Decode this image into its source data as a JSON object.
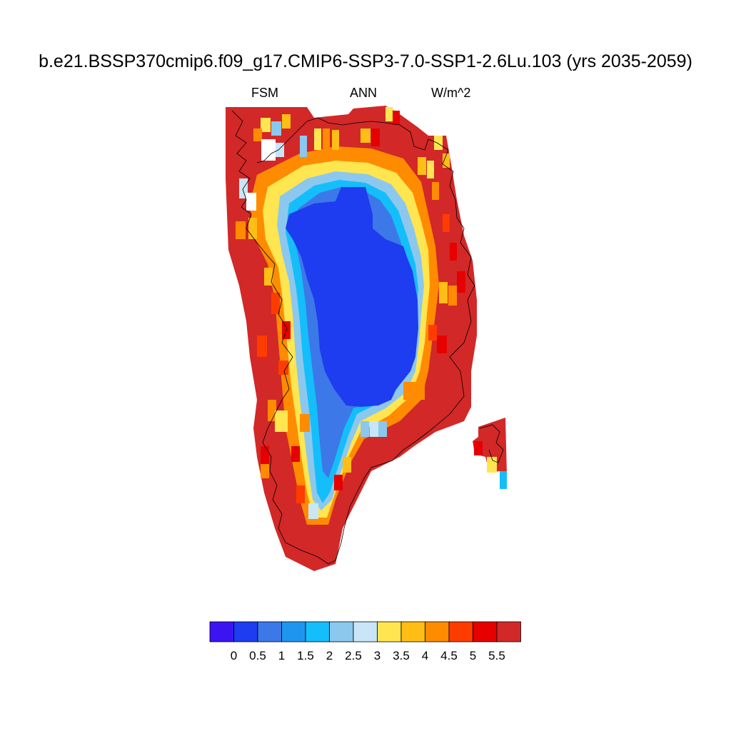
{
  "title": "b.e21.BSSP370cmip6.f09_g17.CMIP6-SSP3-7.0-SSP1-2.6Lu.103 (yrs 2035-2059)",
  "subtitle_left": "FSM",
  "subtitle_center": "ANN",
  "subtitle_right": "W/m^2",
  "colorbar": {
    "labels": [
      "0",
      "0.5",
      "1",
      "1.5",
      "2",
      "2.5",
      "3",
      "3.5",
      "4",
      "4.5",
      "5",
      "5.5"
    ],
    "colors": [
      "#3c14f2",
      "#1e3cf0",
      "#3c78e8",
      "#1e96f0",
      "#14befa",
      "#8cc8ee",
      "#c8e6f8",
      "#ffe650",
      "#ffbe14",
      "#ff8c00",
      "#ff3c00",
      "#e60000",
      "#d22828"
    ]
  },
  "map": {
    "region": "Greenland",
    "ocean_color": "#ffffff",
    "coastline_color": "#000000"
  }
}
